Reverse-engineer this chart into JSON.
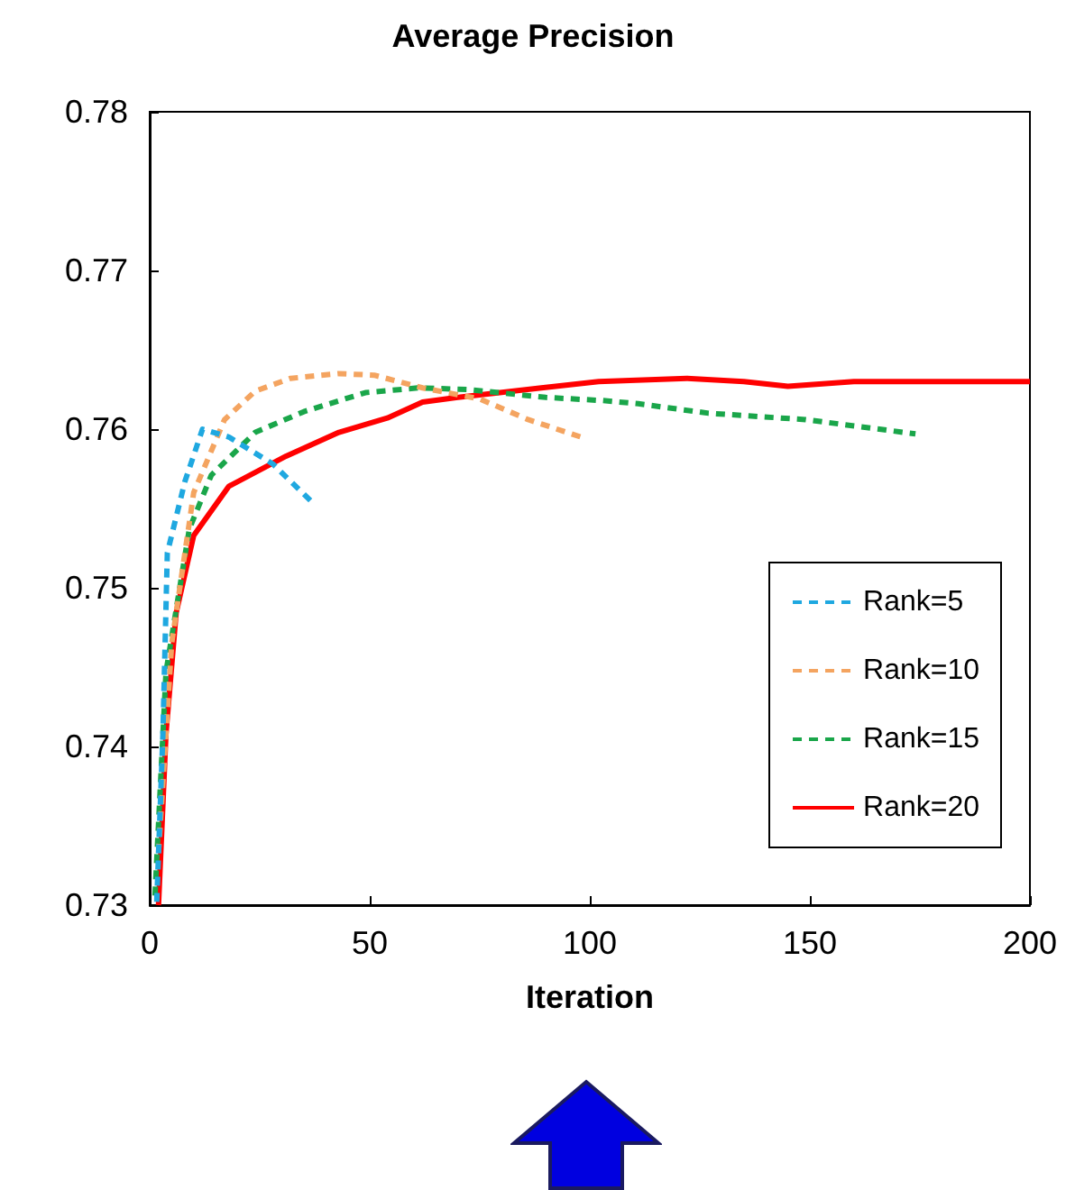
{
  "chart_data": {
    "type": "line",
    "title": "Average Precision",
    "xlabel": "Iteration",
    "xlim": [
      0,
      200
    ],
    "xticks": [
      0,
      50,
      100,
      150,
      200
    ],
    "ylim": [
      0.73,
      0.78
    ],
    "yticks": [
      0.73,
      0.74,
      0.75,
      0.76,
      0.77,
      0.78
    ],
    "grid": false,
    "legend": "bottom right",
    "marker": "none",
    "series": [
      {
        "name": "Rank=5",
        "color": "#1fa8e0",
        "line_style": "dashed",
        "x": [
          1.6,
          3,
          4,
          8,
          12,
          18,
          28,
          36.5
        ],
        "values": [
          0.7302,
          0.7408,
          0.7522,
          0.7567,
          0.76,
          0.7595,
          0.7578,
          0.7555
        ]
      },
      {
        "name": "Rank=10",
        "color": "#f4a460",
        "line_style": "dashed",
        "x": [
          2,
          5,
          10,
          17,
          24,
          32,
          43,
          51,
          62,
          75,
          86,
          98
        ],
        "values": [
          0.7333,
          0.7465,
          0.756,
          0.7606,
          0.7624,
          0.7632,
          0.7635,
          0.7634,
          0.7626,
          0.7619,
          0.7606,
          0.7595
        ]
      },
      {
        "name": "Rank=15",
        "color": "#1aa64a",
        "line_style": "dashed",
        "x": [
          1.2,
          3.7,
          9,
          14,
          24,
          35,
          49,
          61,
          72,
          90,
          103,
          111,
          127,
          149,
          174
        ],
        "values": [
          0.7306,
          0.7447,
          0.7537,
          0.7571,
          0.7598,
          0.7611,
          0.7623,
          0.7626,
          0.7625,
          0.762,
          0.7618,
          0.7616,
          0.761,
          0.7606,
          0.7597
        ]
      },
      {
        "name": "Rank=20",
        "color": "#ff0000",
        "line_style": "solid",
        "x": [
          2,
          3.7,
          6,
          10,
          18,
          31,
          43,
          54,
          62,
          70,
          89,
          102,
          122,
          135,
          145,
          160,
          180,
          200
        ],
        "values": [
          0.73,
          0.7408,
          0.7484,
          0.7533,
          0.7564,
          0.7583,
          0.7598,
          0.7607,
          0.7617,
          0.762,
          0.7626,
          0.763,
          0.7632,
          0.763,
          0.7627,
          0.763,
          0.763,
          0.763
        ]
      }
    ]
  }
}
